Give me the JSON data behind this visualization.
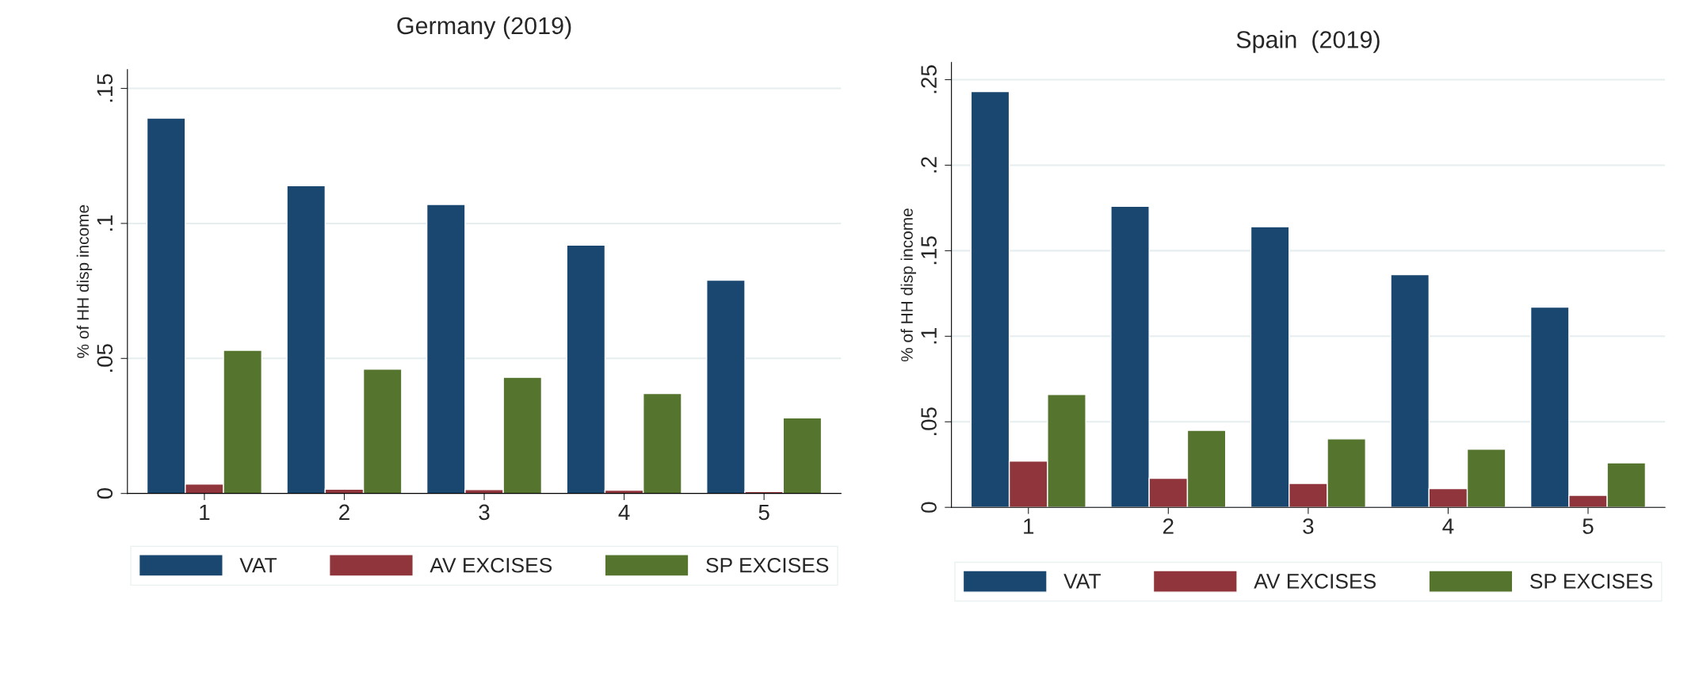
{
  "chart_data": [
    {
      "type": "bar",
      "title": "Germany (2019)",
      "ylabel": "% of HH disp income",
      "categories": [
        "1",
        "2",
        "3",
        "4",
        "5"
      ],
      "series": [
        {
          "name": "VAT",
          "color": "#1a476f",
          "values": [
            0.139,
            0.114,
            0.107,
            0.092,
            0.079
          ]
        },
        {
          "name": "AV EXCISES",
          "color": "#90353b",
          "values": [
            0.0035,
            0.0016,
            0.0014,
            0.0012,
            0.0007
          ]
        },
        {
          "name": "SP EXCISES",
          "color": "#55752f",
          "values": [
            0.053,
            0.046,
            0.043,
            0.037,
            0.028
          ]
        }
      ],
      "ylim": [
        0,
        0.157
      ],
      "yticks": [
        0,
        {
          "value": 0.05,
          "label": ".05"
        },
        {
          "value": 0.1,
          "label": ".1"
        },
        {
          "value": 0.15,
          "label": ".15"
        }
      ],
      "grid": "y",
      "legend": "bottom"
    },
    {
      "type": "bar",
      "title": "Spain  (2019)",
      "ylabel": "% of HH disp income",
      "categories": [
        "1",
        "2",
        "3",
        "4",
        "5"
      ],
      "series": [
        {
          "name": "VAT",
          "color": "#1a476f",
          "values": [
            0.243,
            0.176,
            0.164,
            0.136,
            0.117
          ]
        },
        {
          "name": "AV EXCISES",
          "color": "#90353b",
          "values": [
            0.027,
            0.017,
            0.014,
            0.011,
            0.007
          ]
        },
        {
          "name": "SP EXCISES",
          "color": "#55752f",
          "values": [
            0.066,
            0.045,
            0.04,
            0.034,
            0.026
          ]
        }
      ],
      "ylim": [
        0,
        0.26
      ],
      "yticks": [
        0,
        {
          "value": 0.05,
          "label": ".05"
        },
        {
          "value": 0.1,
          "label": ".1"
        },
        {
          "value": 0.15,
          "label": ".15"
        },
        {
          "value": 0.2,
          "label": ".2"
        },
        {
          "value": 0.25,
          "label": ".25"
        }
      ],
      "grid": "y",
      "legend": "bottom"
    }
  ]
}
